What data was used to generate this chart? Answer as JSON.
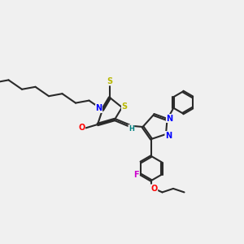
{
  "bg_color": "#f0f0f0",
  "bond_color": "#2a2a2a",
  "bond_width": 1.5,
  "atom_colors": {
    "N": "#0000ff",
    "O": "#ff0000",
    "S": "#b8b800",
    "F": "#cc00cc",
    "H": "#008080",
    "C": "#2a2a2a"
  },
  "fig_width": 3.0,
  "fig_height": 3.0,
  "dpi": 100
}
